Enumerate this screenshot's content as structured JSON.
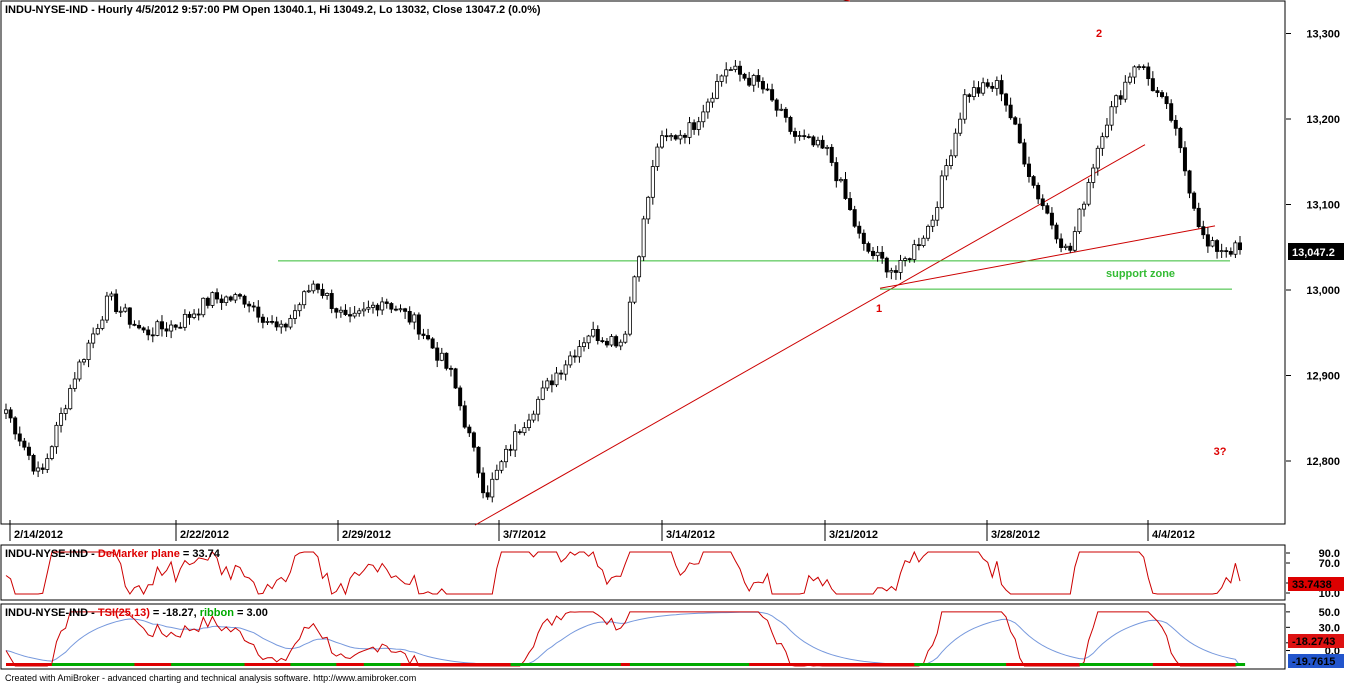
{
  "colors": {
    "background": "#ffffff",
    "axis": "#000000",
    "bull_candle": "#ffffff",
    "bear_candle": "#000000",
    "trendline": "#cc0000",
    "support": "#33bb33",
    "demarker": "#cc0000",
    "tsi": "#cc0000",
    "tsi_signal": "#7799dd",
    "ribbon_green": "#00aa00",
    "ribbon_red": "#dd0000",
    "last_price_bg": "#000000",
    "ind_box_bg": "#dd0000",
    "tsi_box_bg": "#dd1111",
    "signal_box_bg": "#2255cc"
  },
  "price_pane": {
    "header": "INDU-NYSE-IND - Hourly 4/5/2012 9:57:00 PM Open 13040.1, Hi 13049.2, Lo 13032, Close 13047.2 (0.0%)",
    "last_price": "13,047.2",
    "annotations": {
      "wave_1": "1",
      "wave_2": "2",
      "wave_3": "3?",
      "support_zone": "support zone"
    }
  },
  "demarker_pane": {
    "header_prefix": "INDU-NYSE-IND - ",
    "indicator_name": "DeMarker plane",
    "header_value": " = 33.74",
    "value_box": "33.7438",
    "axis_labels": [
      "90.0",
      "70.0",
      "30.0",
      "10.0"
    ]
  },
  "tsi_pane": {
    "header_prefix": "INDU-NYSE-IND - ",
    "indicator_name": "TSI(25,13)",
    "header_value": " = -18.27, ",
    "ribbon_label": "ribbon",
    "ribbon_value": " = 3.00",
    "tsi_box": "-18.2743",
    "signal_box": "-19.7615",
    "axis_labels": [
      "50.0",
      "30.0",
      "10.0",
      "0.0"
    ]
  },
  "footer": "Created with AmiBroker - advanced charting and technical analysis software. http://www.amibroker.com",
  "chart_data": [
    {
      "type": "candlestick",
      "symbol": "INDU-NYSE-IND",
      "timeframe": "Hourly",
      "y_ticks": [
        12800,
        12900,
        13000,
        13100,
        13200,
        13300
      ],
      "x_ticks": [
        "2/14/2012",
        "2/22/2012",
        "2/29/2012",
        "3/7/2012",
        "3/14/2012",
        "3/21/2012",
        "3/28/2012",
        "4/4/2012"
      ],
      "anchors": [
        {
          "date": "2/14/2012",
          "close": 12860
        },
        {
          "date": "2/14/2012",
          "close": 12780
        },
        {
          "date": "2/16/2012",
          "close": 12900
        },
        {
          "date": "2/17/2012",
          "close": 12990
        },
        {
          "date": "2/21/2012",
          "close": 12950
        },
        {
          "date": "2/22/2012",
          "close": 12960
        },
        {
          "date": "2/23/2012",
          "close": 12990
        },
        {
          "date": "2/24/2012",
          "close": 12990
        },
        {
          "date": "2/27/2012",
          "close": 12950
        },
        {
          "date": "2/28/2012",
          "close": 13010
        },
        {
          "date": "2/29/2012",
          "close": 12960
        },
        {
          "date": "3/1/2012",
          "close": 12990
        },
        {
          "date": "3/2/2012",
          "close": 12960
        },
        {
          "date": "3/5/2012",
          "close": 12900
        },
        {
          "date": "3/6/2012",
          "close": 12760
        },
        {
          "date": "3/7/2012",
          "close": 12840
        },
        {
          "date": "3/8/2012",
          "close": 12900
        },
        {
          "date": "3/9/2012",
          "close": 12950
        },
        {
          "date": "3/12/2012",
          "close": 12940
        },
        {
          "date": "3/13/2012",
          "close": 13170
        },
        {
          "date": "3/14/2012",
          "close": 13190
        },
        {
          "date": "3/15/2012",
          "close": 13260
        },
        {
          "date": "3/16/2012",
          "close": 13240
        },
        {
          "date": "3/19/2012",
          "close": 13180
        },
        {
          "date": "3/20/2012",
          "close": 13160
        },
        {
          "date": "3/21/2012",
          "close": 13050
        },
        {
          "date": "3/22/2012",
          "close": 13020
        },
        {
          "date": "3/23/2012",
          "close": 13080
        },
        {
          "date": "3/26/2012",
          "close": 13230
        },
        {
          "date": "3/27/2012",
          "close": 13240
        },
        {
          "date": "3/28/2012",
          "close": 13120
        },
        {
          "date": "3/29/2012",
          "close": 13040
        },
        {
          "date": "3/30/2012",
          "close": 13190
        },
        {
          "date": "4/2/2012",
          "close": 13270
        },
        {
          "date": "4/3/2012",
          "close": 13200
        },
        {
          "date": "4/4/2012",
          "close": 13050
        },
        {
          "date": "4/5/2012",
          "close": 13047.2
        }
      ],
      "last_bar": {
        "open": 13040.1,
        "high": 13049.2,
        "low": 13032,
        "close": 13047.2
      }
    },
    {
      "type": "line",
      "name": "DeMarker plane",
      "ylim": [
        0,
        100
      ],
      "y_ticks": [
        10,
        30,
        70,
        90
      ],
      "last_value": 33.7438
    },
    {
      "type": "line",
      "name": "TSI(25,13)",
      "y_ticks": [
        0,
        10,
        30,
        50
      ],
      "last_value": -18.2743,
      "signal_last_value": -19.7615,
      "ribbon": 3.0
    }
  ]
}
